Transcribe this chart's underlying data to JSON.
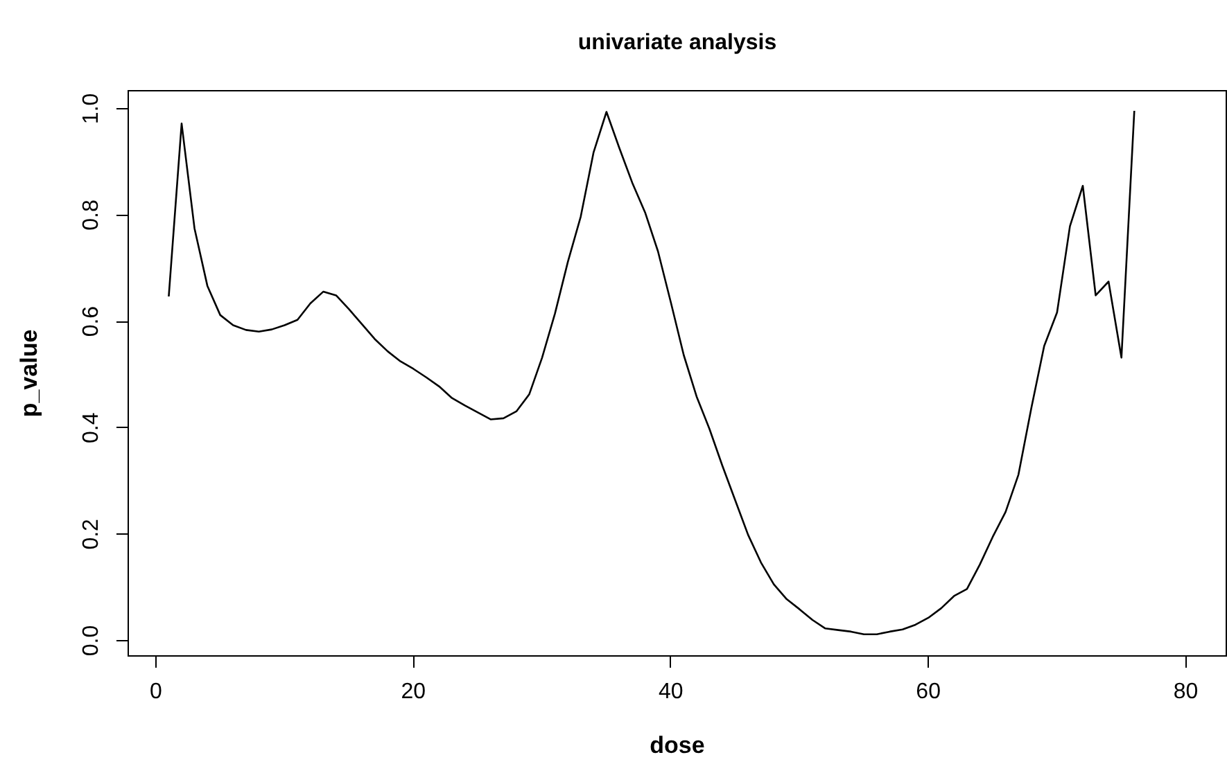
{
  "chart_data": {
    "type": "line",
    "title": "univariate analysis",
    "xlabel": "dose",
    "ylabel": "p_value",
    "x": [
      1,
      2,
      3,
      4,
      5,
      6,
      7,
      8,
      9,
      10,
      11,
      12,
      13,
      14,
      15,
      16,
      17,
      18,
      19,
      20,
      21,
      22,
      23,
      24,
      25,
      26,
      27,
      28,
      29,
      30,
      31,
      32,
      33,
      34,
      35,
      36,
      37,
      38,
      39,
      40,
      41,
      42,
      43,
      44,
      45,
      46,
      47,
      48,
      49,
      50,
      51,
      52,
      53,
      54,
      55,
      56,
      57,
      58,
      59,
      60,
      61,
      62,
      63,
      64,
      65,
      66,
      67,
      68,
      69,
      70,
      71,
      72,
      73,
      74,
      75,
      76
    ],
    "series": [
      {
        "color": "#000000",
        "values": [
          0.647,
          0.972,
          0.775,
          0.667,
          0.612,
          0.593,
          0.584,
          0.581,
          0.585,
          0.593,
          0.603,
          0.634,
          0.656,
          0.649,
          0.623,
          0.595,
          0.567,
          0.544,
          0.525,
          0.511,
          0.495,
          0.478,
          0.456,
          0.442,
          0.429,
          0.416,
          0.418,
          0.431,
          0.463,
          0.532,
          0.615,
          0.712,
          0.797,
          0.918,
          0.994,
          0.926,
          0.861,
          0.805,
          0.732,
          0.636,
          0.537,
          0.459,
          0.398,
          0.329,
          0.264,
          0.199,
          0.147,
          0.106,
          0.078,
          0.059,
          0.039,
          0.023,
          0.02,
          0.017,
          0.012,
          0.012,
          0.017,
          0.021,
          0.03,
          0.043,
          0.061,
          0.084,
          0.097,
          0.143,
          0.195,
          0.242,
          0.312,
          0.437,
          0.554,
          0.617,
          0.779,
          0.855,
          0.649,
          0.675,
          0.532,
          0.996
        ]
      }
    ],
    "xlim": [
      -2.2,
      83.2
    ],
    "ylim": [
      -0.03,
      1.035
    ],
    "xticks": [
      0,
      20,
      40,
      60,
      80
    ],
    "yticks": [
      {
        "value": 0,
        "label": "0.0"
      },
      {
        "value": 0.2,
        "label": "0.2"
      },
      {
        "value": 0.4,
        "label": "0.4"
      },
      {
        "value": 0.6,
        "label": "0.6"
      },
      {
        "value": 0.8,
        "label": "0.8"
      },
      {
        "value": 1,
        "label": "1.0"
      }
    ],
    "grid": false,
    "legend": false,
    "marker": "none",
    "line_style": "solid"
  }
}
